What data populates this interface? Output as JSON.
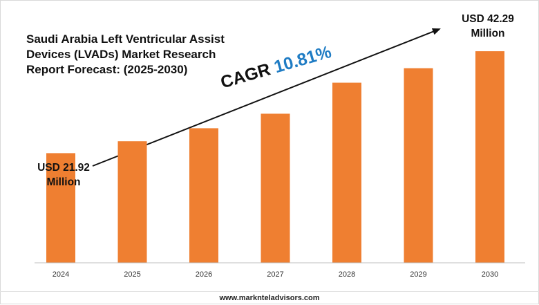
{
  "chart_data": {
    "type": "bar",
    "title": "Saudi Arabia Left Ventricular Assist Devices (LVADs) Market Research Report Forecast: (2025-2030)",
    "categories": [
      "2024",
      "2025",
      "2026",
      "2027",
      "2028",
      "2029",
      "2030"
    ],
    "values": [
      21.92,
      24.3,
      26.9,
      29.8,
      36.0,
      38.9,
      42.29
    ],
    "ylim": [
      0,
      47
    ],
    "grid": false,
    "colors": {
      "bar": "#ef7f31",
      "axis": "#bfbfbf",
      "arrow": "#111111",
      "cagr_value": "#1f7cc4"
    },
    "annotations": {
      "start_label_line1": "USD 21.92",
      "start_label_line2": "Million",
      "end_label_line1": "USD 42.29",
      "end_label_line2": "Million",
      "cagr_label": "CAGR",
      "cagr_value": "10.81%"
    }
  },
  "footer": {
    "website": "www.marknteladvisors.com"
  }
}
